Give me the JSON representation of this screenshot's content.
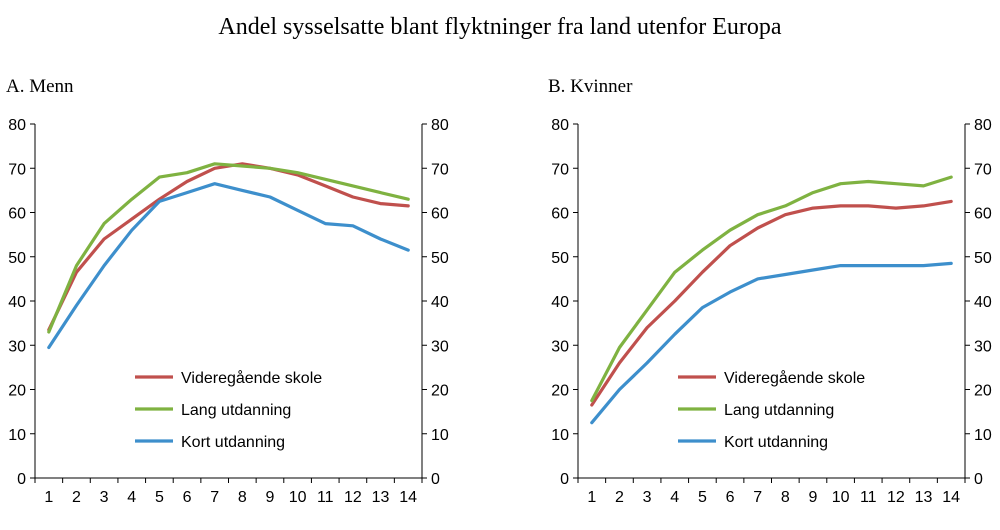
{
  "title": "Andel sysselsatte blant flyktninger fra land utenfor Europa",
  "panels": {
    "a": {
      "label": "A.  Menn"
    },
    "b": {
      "label": "B.  Kvinner"
    }
  },
  "chart_data": [
    {
      "type": "line",
      "title": "A.  Menn",
      "x": [
        1,
        2,
        3,
        4,
        5,
        6,
        7,
        8,
        9,
        10,
        11,
        12,
        13,
        14
      ],
      "ylim": [
        0,
        80
      ],
      "yticks": [
        0,
        10,
        20,
        30,
        40,
        50,
        60,
        70,
        80
      ],
      "legend_position": "bottom-center",
      "series": [
        {
          "name": "Videregående skole",
          "color": "#c0504d",
          "values": [
            33.5,
            46.5,
            54,
            58.5,
            63,
            67,
            70,
            71,
            70,
            68.5,
            66,
            63.5,
            62,
            61.5
          ]
        },
        {
          "name": "Lang utdanning",
          "color": "#7fb241",
          "values": [
            33,
            48,
            57.5,
            63,
            68,
            69,
            71,
            70.5,
            70,
            69,
            67.5,
            66,
            64.5,
            63
          ]
        },
        {
          "name": "Kort utdanning",
          "color": "#3d8fcc",
          "values": [
            29.5,
            39,
            48,
            56,
            62.5,
            64.5,
            66.5,
            65,
            63.5,
            60.5,
            57.5,
            57,
            54,
            51.5
          ]
        }
      ]
    },
    {
      "type": "line",
      "title": "B.  Kvinner",
      "x": [
        1,
        2,
        3,
        4,
        5,
        6,
        7,
        8,
        9,
        10,
        11,
        12,
        13,
        14
      ],
      "ylim": [
        0,
        80
      ],
      "yticks": [
        0,
        10,
        20,
        30,
        40,
        50,
        60,
        70,
        80
      ],
      "legend_position": "bottom-center",
      "series": [
        {
          "name": "Videregående skole",
          "color": "#c0504d",
          "values": [
            16.5,
            26,
            34,
            40,
            46.5,
            52.5,
            56.5,
            59.5,
            61,
            61.5,
            61.5,
            61,
            61.5,
            62.5
          ]
        },
        {
          "name": "Lang utdanning",
          "color": "#7fb241",
          "values": [
            17.5,
            29.5,
            38,
            46.5,
            51.5,
            56,
            59.5,
            61.5,
            64.5,
            66.5,
            67,
            66.5,
            66,
            68
          ]
        },
        {
          "name": "Kort utdanning",
          "color": "#3d8fcc",
          "values": [
            12.5,
            20,
            26,
            32.5,
            38.5,
            42,
            45,
            46,
            47,
            48,
            48,
            48,
            48,
            48.5
          ]
        }
      ]
    }
  ]
}
